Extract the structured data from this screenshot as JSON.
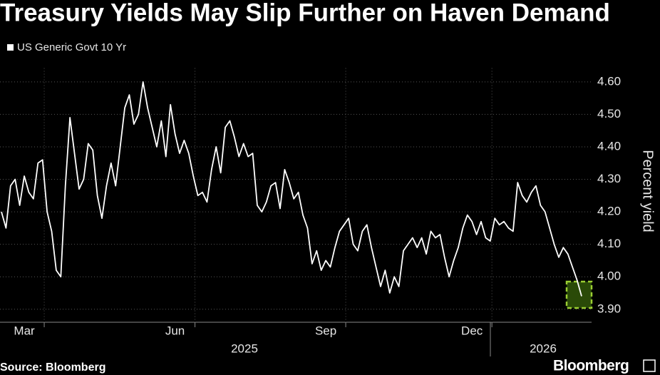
{
  "chart_data": {
    "type": "line",
    "title": "Treasury Yields May Slip Further on Haven Demand",
    "y_axis_label": "Percent yield",
    "source": "Source: Bloomberg",
    "logo": "Bloomberg",
    "year_labels": [
      "2025",
      "2026"
    ],
    "categories": [
      null,
      null,
      null,
      null,
      null,
      "Mar",
      null,
      null,
      null,
      null,
      null,
      null,
      null,
      null,
      null,
      null,
      null,
      null,
      null,
      null,
      null,
      null,
      null,
      null,
      null,
      null,
      null,
      null,
      null,
      null,
      null,
      null,
      null,
      null,
      null,
      null,
      null,
      null,
      "Jun",
      null,
      null,
      null,
      null,
      null,
      null,
      null,
      null,
      null,
      null,
      null,
      null,
      null,
      null,
      null,
      null,
      null,
      null,
      null,
      null,
      null,
      null,
      null,
      null,
      null,
      null,
      null,
      null,
      null,
      null,
      null,
      null,
      "Sep",
      null,
      null,
      null,
      null,
      null,
      null,
      null,
      null,
      null,
      null,
      null,
      null,
      null,
      null,
      null,
      null,
      null,
      null,
      null,
      null,
      null,
      null,
      null,
      null,
      null,
      null,
      null,
      null,
      null,
      null,
      null,
      "Dec",
      null,
      null,
      null,
      null,
      null,
      null,
      null,
      null,
      null,
      null,
      null,
      null,
      null,
      null,
      null,
      null,
      null,
      null,
      null,
      null,
      null,
      null,
      null,
      null
    ],
    "series": [
      {
        "name": "US Generic Govt 10 Yr",
        "color": "#ffffff",
        "values": [
          4.2,
          4.15,
          4.28,
          4.3,
          4.22,
          4.31,
          4.26,
          4.24,
          4.35,
          4.36,
          4.2,
          4.14,
          4.02,
          4.0,
          4.28,
          4.49,
          4.38,
          4.27,
          4.3,
          4.41,
          4.39,
          4.25,
          4.18,
          4.28,
          4.35,
          4.28,
          4.4,
          4.52,
          4.56,
          4.47,
          4.5,
          4.6,
          4.52,
          4.46,
          4.4,
          4.48,
          4.37,
          4.53,
          4.44,
          4.38,
          4.42,
          4.38,
          4.31,
          4.25,
          4.26,
          4.23,
          4.33,
          4.4,
          4.32,
          4.46,
          4.48,
          4.43,
          4.37,
          4.41,
          4.37,
          4.38,
          4.22,
          4.2,
          4.23,
          4.28,
          4.29,
          4.21,
          4.33,
          4.29,
          4.24,
          4.26,
          4.19,
          4.15,
          4.04,
          4.08,
          4.02,
          4.05,
          4.03,
          4.09,
          4.14,
          4.16,
          4.18,
          4.1,
          4.08,
          4.14,
          4.16,
          4.09,
          4.03,
          3.97,
          4.02,
          3.95,
          4.0,
          3.97,
          4.08,
          4.1,
          4.12,
          4.09,
          4.12,
          4.07,
          4.14,
          4.12,
          4.13,
          4.06,
          4.0,
          4.05,
          4.09,
          4.15,
          4.19,
          4.17,
          4.13,
          4.17,
          4.12,
          4.11,
          4.18,
          4.16,
          4.17,
          4.15,
          4.14,
          4.29,
          4.25,
          4.23,
          4.26,
          4.28,
          4.22,
          4.2,
          4.15,
          4.1,
          4.06,
          4.09,
          4.07,
          4.03,
          3.99,
          3.94
        ]
      }
    ],
    "ylim": [
      3.86,
      4.66
    ],
    "yticks": [
      {
        "value": 3.9,
        "label": "3.90"
      },
      {
        "value": 4.0,
        "label": "4.00"
      },
      {
        "value": 4.1,
        "label": "4.10"
      },
      {
        "value": 4.2,
        "label": "4.20"
      },
      {
        "value": 4.3,
        "label": "4.30"
      },
      {
        "value": 4.4,
        "label": "4.40"
      },
      {
        "value": 4.5,
        "label": "4.50"
      },
      {
        "value": 4.6,
        "label": "4.60"
      }
    ],
    "grid": true,
    "y_axis_side": "right"
  }
}
